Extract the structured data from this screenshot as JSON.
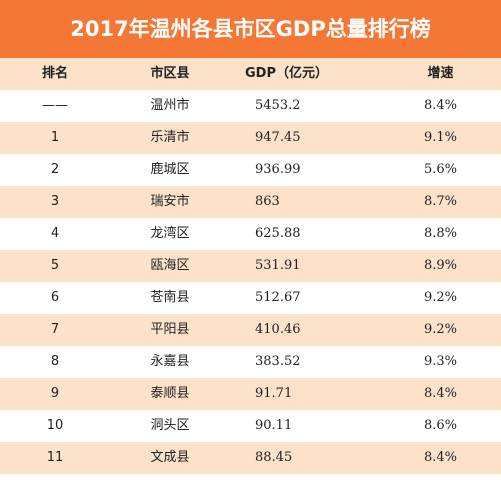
{
  "title": "2017年温州各县市区GDP总量排行榜",
  "chart_data": {
    "type": "table",
    "title": "2017年温州各县市区GDP总量排行榜",
    "columns": [
      "排名",
      "市区县",
      "GDP（亿元）",
      "增速"
    ],
    "rows": [
      {
        "rank": "——",
        "name": "温州市",
        "gdp": "5453.2",
        "growth": "8.4%"
      },
      {
        "rank": "1",
        "name": "乐清市",
        "gdp": "947.45",
        "growth": "9.1%"
      },
      {
        "rank": "2",
        "name": "鹿城区",
        "gdp": "936.99",
        "growth": "5.6%"
      },
      {
        "rank": "3",
        "name": "瑞安市",
        "gdp": "863",
        "growth": "8.7%"
      },
      {
        "rank": "4",
        "name": "龙湾区",
        "gdp": "625.88",
        "growth": "8.8%"
      },
      {
        "rank": "5",
        "name": "瓯海区",
        "gdp": "531.91",
        "growth": "8.9%"
      },
      {
        "rank": "6",
        "name": "苍南县",
        "gdp": "512.67",
        "growth": "9.2%"
      },
      {
        "rank": "7",
        "name": "平阳县",
        "gdp": "410.46",
        "growth": "9.2%"
      },
      {
        "rank": "8",
        "name": "永嘉县",
        "gdp": "383.52",
        "growth": "9.3%"
      },
      {
        "rank": "9",
        "name": "泰顺县",
        "gdp": "91.71",
        "growth": "8.4%"
      },
      {
        "rank": "10",
        "name": "洞头区",
        "gdp": "90.11",
        "growth": "8.6%"
      },
      {
        "rank": "11",
        "name": "文成县",
        "gdp": "88.45",
        "growth": "8.4%"
      }
    ]
  },
  "colors": {
    "header_bg": "#f47735",
    "stripe_bg": "#fbe2c9",
    "plain_bg": "#ffffff"
  }
}
